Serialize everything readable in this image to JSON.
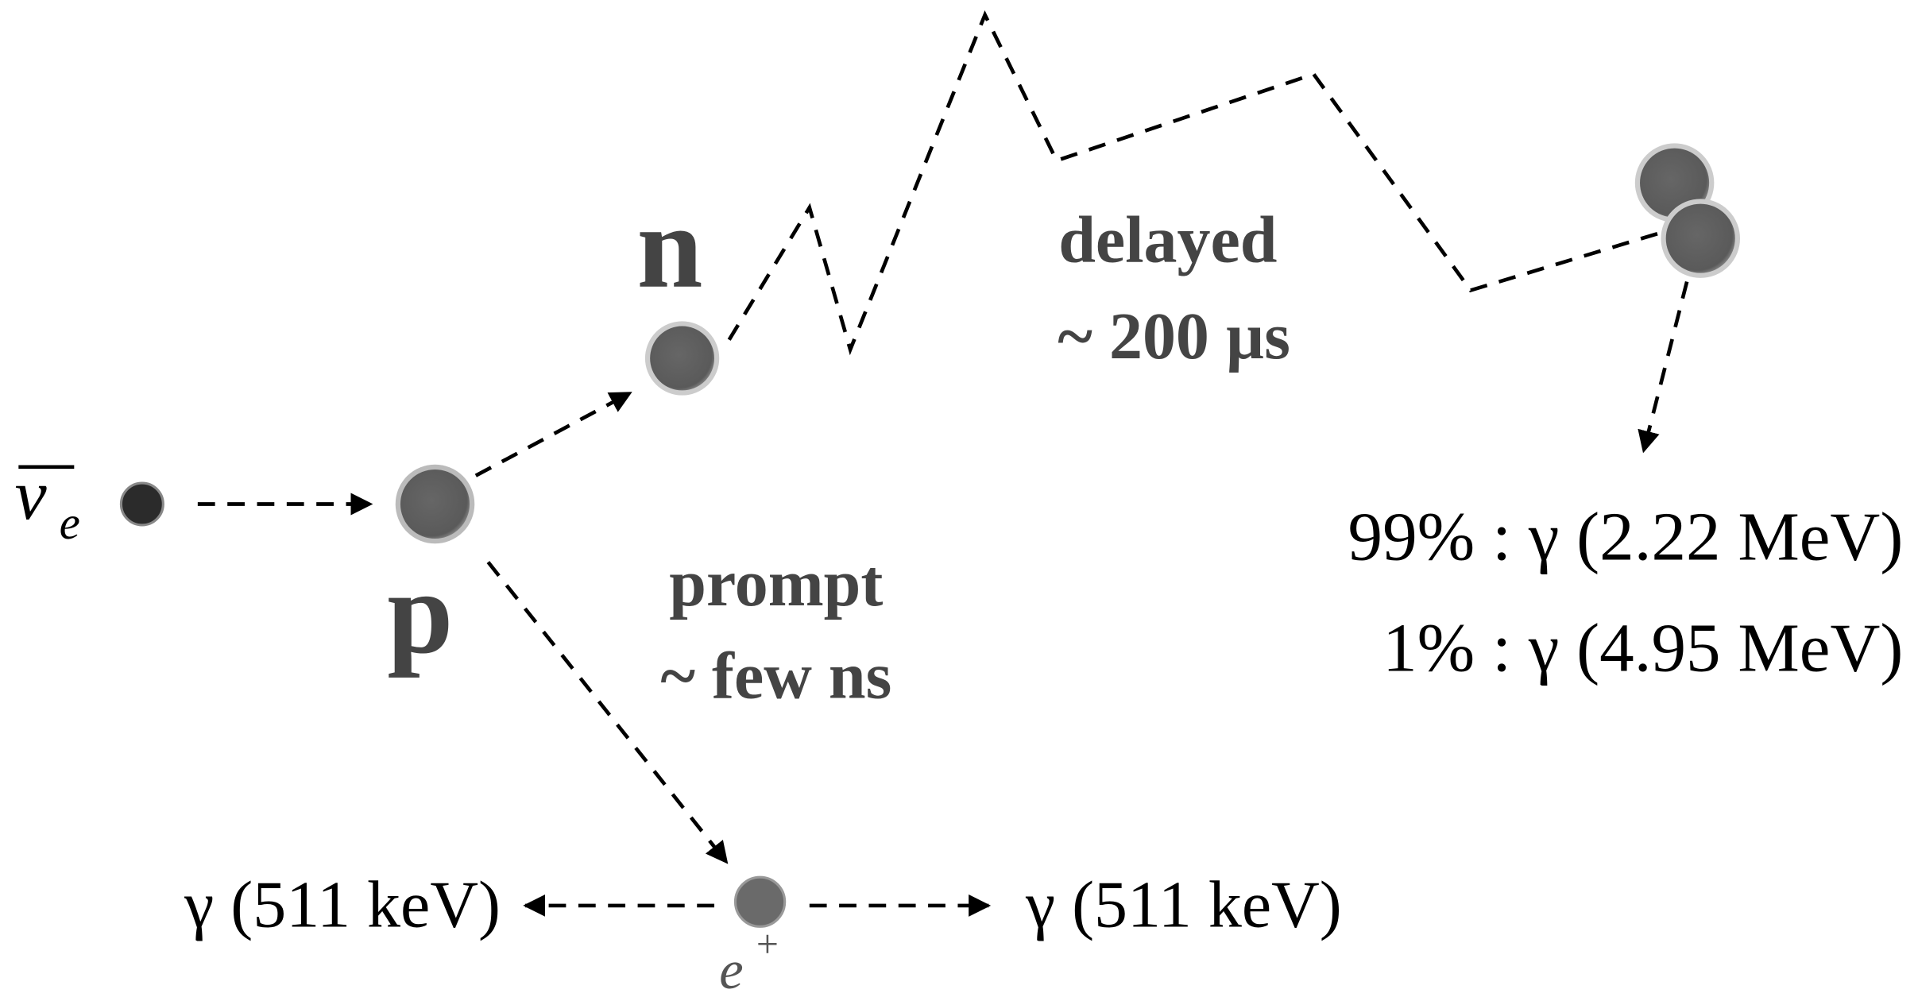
{
  "particles": {
    "antineutrino": {
      "symbol": "ν",
      "subscript": "e"
    },
    "neutron": "n",
    "proton": "p",
    "positron": {
      "symbol": "e",
      "superscript": "+"
    }
  },
  "delayed": {
    "label": "delayed",
    "time": "~ 200 µs"
  },
  "prompt": {
    "label": "prompt",
    "time": "~ few ns"
  },
  "capture_gammas": [
    "99% : γ (2.22 MeV)",
    "1% : γ (4.95 MeV)"
  ],
  "annihilation_gammas": [
    "γ (511 keV)",
    "γ (511 keV)"
  ]
}
